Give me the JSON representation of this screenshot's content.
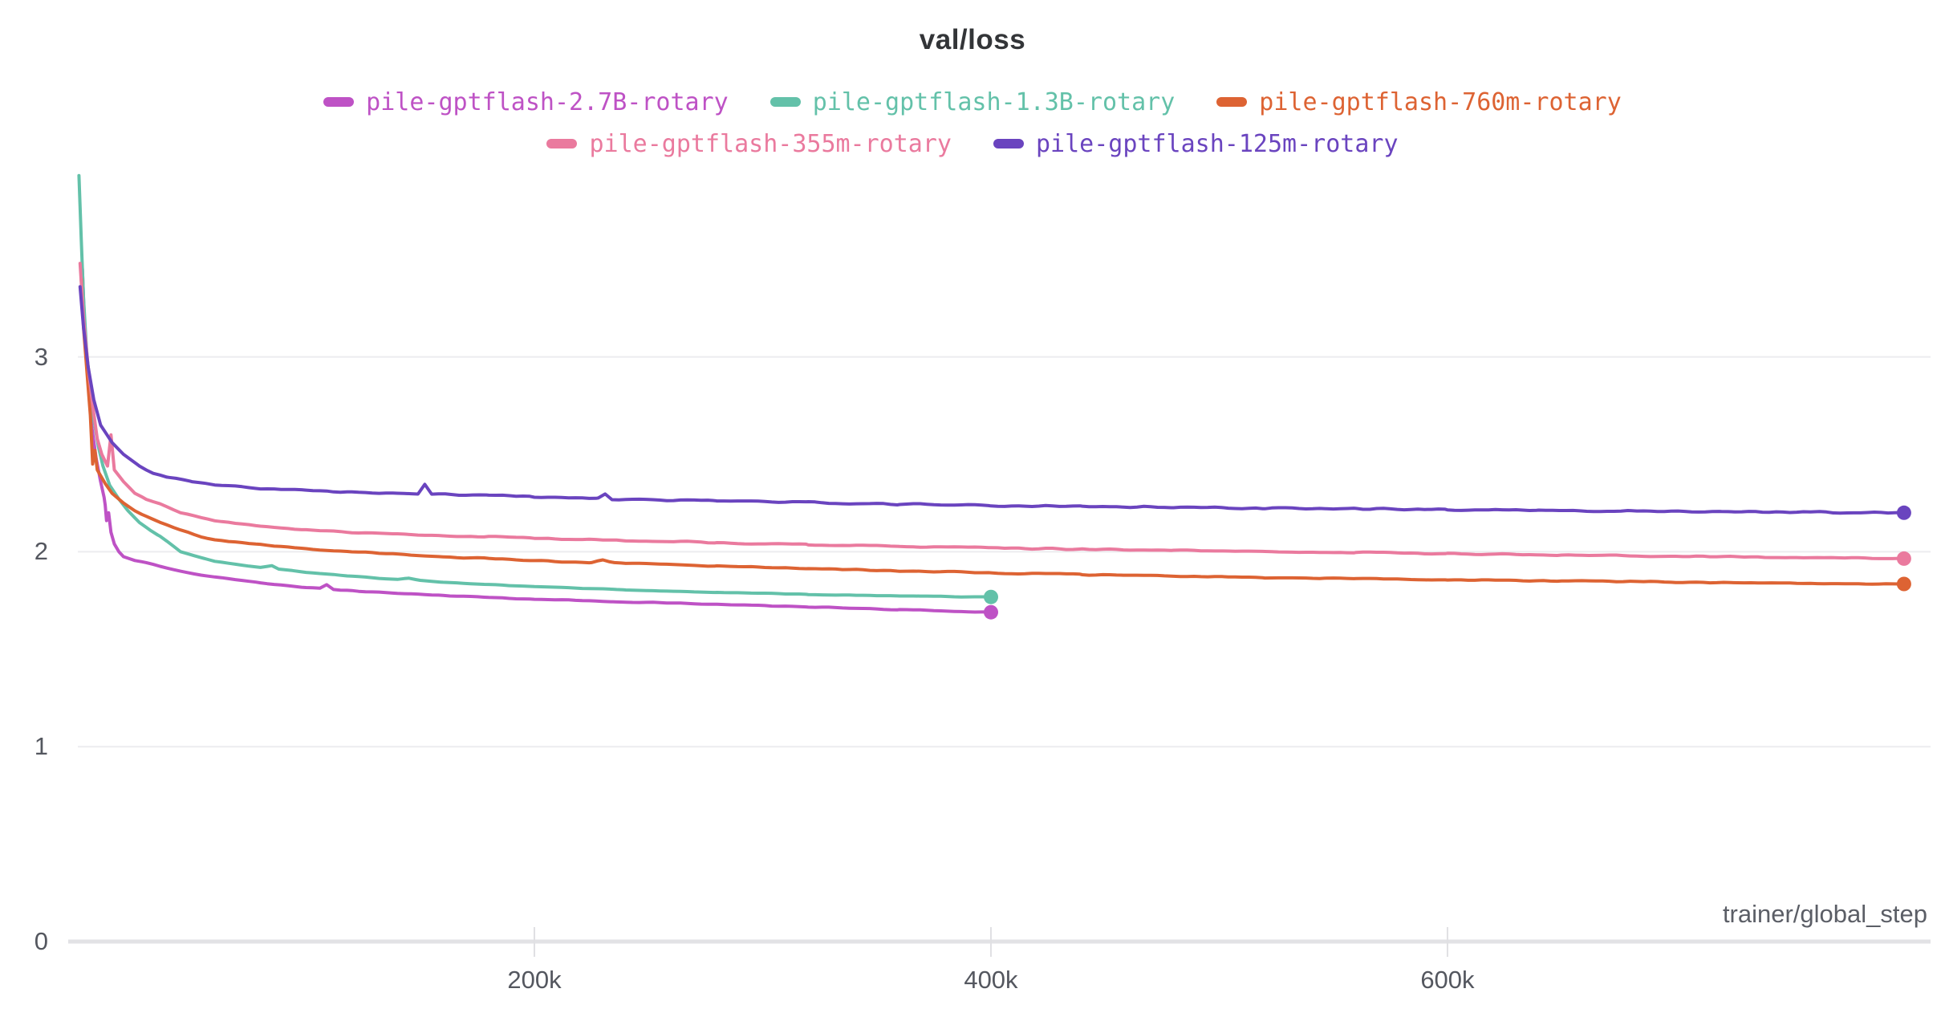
{
  "chart_data": {
    "type": "line",
    "title": "val/loss",
    "xlabel": "trainer/global_step",
    "ylabel": "",
    "legend_position": "top",
    "grid": "horizontal-only",
    "colors": {
      "title_text": "#333538",
      "tick_text": "#54575F",
      "axis_label_text": "#5B5E66",
      "gridline": "#ECECEF",
      "axis_line": "#E2E2E5",
      "tick_mark": "#E0E0E3",
      "background": "#FFFFFF"
    },
    "x_axis": {
      "min": 0,
      "max": 806000,
      "ticks": [
        {
          "value": 200000,
          "label": "200k"
        },
        {
          "value": 400000,
          "label": "400k"
        },
        {
          "value": 600000,
          "label": "600k"
        }
      ]
    },
    "y_axis": {
      "min": 0,
      "max": 4.25,
      "ticks": [
        {
          "value": 0,
          "label": "0"
        },
        {
          "value": 1,
          "label": "1"
        },
        {
          "value": 2,
          "label": "2"
        },
        {
          "value": 3,
          "label": "3"
        }
      ]
    },
    "series": [
      {
        "name": "pile-gptflash-2.7B-rotary",
        "color": "#BE52C5",
        "noise": 0.0025,
        "end_dot": true,
        "points": [
          [
            2000,
            3.45
          ],
          [
            3000,
            3.15
          ],
          [
            4000,
            2.95
          ],
          [
            6000,
            2.65
          ],
          [
            8000,
            2.48
          ],
          [
            10000,
            2.36
          ],
          [
            11500,
            2.28
          ],
          [
            12000,
            2.24
          ],
          [
            12600,
            2.16
          ],
          [
            13500,
            2.2
          ],
          [
            14500,
            2.1
          ],
          [
            16000,
            2.04
          ],
          [
            18000,
            2.0
          ],
          [
            20000,
            1.975
          ],
          [
            25000,
            1.955
          ],
          [
            30000,
            1.945
          ],
          [
            36000,
            1.925
          ],
          [
            45000,
            1.9
          ],
          [
            60000,
            1.87
          ],
          [
            80000,
            1.84
          ],
          [
            100000,
            1.818
          ],
          [
            106000,
            1.812
          ],
          [
            109000,
            1.83
          ],
          [
            112000,
            1.806
          ],
          [
            120000,
            1.8
          ],
          [
            140000,
            1.787
          ],
          [
            160000,
            1.776
          ],
          [
            180000,
            1.766
          ],
          [
            200000,
            1.757
          ],
          [
            240000,
            1.743
          ],
          [
            280000,
            1.73
          ],
          [
            320000,
            1.717
          ],
          [
            360000,
            1.703
          ],
          [
            400000,
            1.69
          ]
        ]
      },
      {
        "name": "pile-gptflash-1.3B-rotary",
        "color": "#63C1A9",
        "noise": 0.002,
        "end_dot": true,
        "points": [
          [
            500,
            3.93
          ],
          [
            1500,
            3.6
          ],
          [
            2500,
            3.3
          ],
          [
            4000,
            3.0
          ],
          [
            5500,
            2.85
          ],
          [
            7000,
            2.68
          ],
          [
            9000,
            2.54
          ],
          [
            11000,
            2.44
          ],
          [
            14000,
            2.34
          ],
          [
            18000,
            2.27
          ],
          [
            22000,
            2.21
          ],
          [
            27000,
            2.15
          ],
          [
            32000,
            2.11
          ],
          [
            36000,
            2.08
          ],
          [
            45000,
            2.0
          ],
          [
            60000,
            1.95
          ],
          [
            80000,
            1.92
          ],
          [
            85000,
            1.93
          ],
          [
            88000,
            1.912
          ],
          [
            100000,
            1.895
          ],
          [
            120000,
            1.875
          ],
          [
            140000,
            1.858
          ],
          [
            145000,
            1.865
          ],
          [
            150000,
            1.853
          ],
          [
            160000,
            1.843
          ],
          [
            180000,
            1.832
          ],
          [
            200000,
            1.822
          ],
          [
            240000,
            1.805
          ],
          [
            280000,
            1.792
          ],
          [
            320000,
            1.781
          ],
          [
            360000,
            1.773
          ],
          [
            400000,
            1.768
          ]
        ]
      },
      {
        "name": "pile-gptflash-760m-rotary",
        "color": "#DD6333",
        "noise": 0.004,
        "end_dot": true,
        "points": [
          [
            1500,
            3.4
          ],
          [
            2500,
            3.15
          ],
          [
            4000,
            2.92
          ],
          [
            5500,
            2.7
          ],
          [
            6500,
            2.45
          ],
          [
            7500,
            2.52
          ],
          [
            8500,
            2.42
          ],
          [
            12000,
            2.35
          ],
          [
            15000,
            2.3
          ],
          [
            20000,
            2.25
          ],
          [
            25000,
            2.21
          ],
          [
            30000,
            2.18
          ],
          [
            36000,
            2.15
          ],
          [
            45000,
            2.11
          ],
          [
            60000,
            2.06
          ],
          [
            80000,
            2.035
          ],
          [
            100000,
            2.015
          ],
          [
            120000,
            2.0
          ],
          [
            140000,
            1.988
          ],
          [
            160000,
            1.975
          ],
          [
            180000,
            1.965
          ],
          [
            200000,
            1.955
          ],
          [
            225000,
            1.945
          ],
          [
            230000,
            1.957
          ],
          [
            235000,
            1.943
          ],
          [
            240000,
            1.94
          ],
          [
            280000,
            1.928
          ],
          [
            320000,
            1.913
          ],
          [
            360000,
            1.902
          ],
          [
            400000,
            1.892
          ],
          [
            440000,
            1.883
          ],
          [
            480000,
            1.875
          ],
          [
            520000,
            1.868
          ],
          [
            560000,
            1.862
          ],
          [
            600000,
            1.856
          ],
          [
            650000,
            1.85
          ],
          [
            700000,
            1.845
          ],
          [
            750000,
            1.84
          ],
          [
            800000,
            1.835
          ]
        ]
      },
      {
        "name": "pile-gptflash-355m-rotary",
        "color": "#EA7A9E",
        "noise": 0.0045,
        "end_dot": true,
        "points": [
          [
            1000,
            3.48
          ],
          [
            2500,
            3.2
          ],
          [
            4500,
            2.95
          ],
          [
            6500,
            2.75
          ],
          [
            8500,
            2.58
          ],
          [
            10500,
            2.5
          ],
          [
            13000,
            2.44
          ],
          [
            14500,
            2.6
          ],
          [
            16000,
            2.42
          ],
          [
            20000,
            2.36
          ],
          [
            25000,
            2.3
          ],
          [
            30000,
            2.27
          ],
          [
            36000,
            2.245
          ],
          [
            45000,
            2.2
          ],
          [
            60000,
            2.16
          ],
          [
            80000,
            2.13
          ],
          [
            100000,
            2.113
          ],
          [
            120000,
            2.1
          ],
          [
            140000,
            2.09
          ],
          [
            160000,
            2.083
          ],
          [
            180000,
            2.077
          ],
          [
            200000,
            2.07
          ],
          [
            240000,
            2.058
          ],
          [
            280000,
            2.047
          ],
          [
            320000,
            2.037
          ],
          [
            360000,
            2.028
          ],
          [
            400000,
            2.02
          ],
          [
            440000,
            2.013
          ],
          [
            480000,
            2.007
          ],
          [
            520000,
            2.001
          ],
          [
            560000,
            1.996
          ],
          [
            600000,
            1.99
          ],
          [
            650000,
            1.984
          ],
          [
            700000,
            1.977
          ],
          [
            750000,
            1.971
          ],
          [
            800000,
            1.965
          ]
        ]
      },
      {
        "name": "pile-gptflash-125m-rotary",
        "color": "#6A44BF",
        "noise": 0.006,
        "end_dot": true,
        "points": [
          [
            1000,
            3.36
          ],
          [
            2500,
            3.15
          ],
          [
            4500,
            2.95
          ],
          [
            7000,
            2.78
          ],
          [
            10000,
            2.65
          ],
          [
            15000,
            2.56
          ],
          [
            20000,
            2.5
          ],
          [
            27000,
            2.44
          ],
          [
            33000,
            2.4
          ],
          [
            40000,
            2.38
          ],
          [
            50000,
            2.36
          ],
          [
            60000,
            2.345
          ],
          [
            80000,
            2.325
          ],
          [
            100000,
            2.315
          ],
          [
            120000,
            2.305
          ],
          [
            140000,
            2.3
          ],
          [
            149000,
            2.295
          ],
          [
            152000,
            2.345
          ],
          [
            155000,
            2.295
          ],
          [
            180000,
            2.288
          ],
          [
            200000,
            2.282
          ],
          [
            228000,
            2.272
          ],
          [
            231000,
            2.295
          ],
          [
            234000,
            2.27
          ],
          [
            280000,
            2.262
          ],
          [
            320000,
            2.252
          ],
          [
            360000,
            2.244
          ],
          [
            400000,
            2.238
          ],
          [
            440000,
            2.232
          ],
          [
            480000,
            2.227
          ],
          [
            520000,
            2.223
          ],
          [
            560000,
            2.22
          ],
          [
            600000,
            2.217
          ],
          [
            640000,
            2.213
          ],
          [
            680000,
            2.21
          ],
          [
            720000,
            2.206
          ],
          [
            760000,
            2.203
          ],
          [
            800000,
            2.2
          ]
        ]
      }
    ]
  }
}
